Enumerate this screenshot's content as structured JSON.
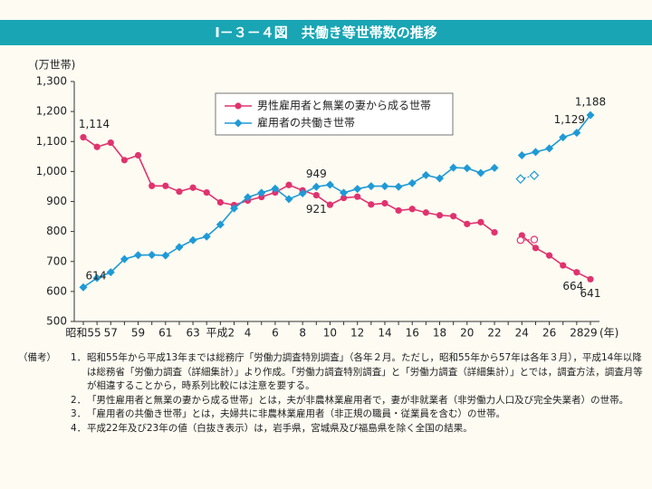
{
  "chart_data": {
    "type": "line",
    "title": "Ⅰ－３－４図　共働き等世帯数の推移",
    "y_label": "(万世帯)",
    "x_label": "(年)",
    "categories": [
      "昭和55",
      null,
      "57",
      null,
      "59",
      null,
      "61",
      null,
      "63",
      null,
      "平成2",
      null,
      "4",
      null,
      "6",
      null,
      "8",
      null,
      "10",
      null,
      "12",
      null,
      "14",
      null,
      "16",
      null,
      "18",
      null,
      "20",
      null,
      "22",
      null,
      "24",
      null,
      "26",
      null,
      "28",
      "29"
    ],
    "ylim": [
      500,
      1300
    ],
    "yticks": [
      500,
      600,
      700,
      800,
      900,
      {
        "value": 1000,
        "label": "1,000"
      },
      {
        "value": 1100,
        "label": "1,100"
      },
      {
        "value": 1200,
        "label": "1,200"
      },
      {
        "value": 1300,
        "label": "1,300"
      }
    ],
    "series": [
      {
        "name": "男性雇用者と無業の妻から成る世帯",
        "color": "#e0336e",
        "values": [
          1114,
          1082,
          1096,
          1038,
          1054,
          952,
          952,
          933,
          946,
          930,
          897,
          888,
          903,
          915,
          930,
          955,
          937,
          921,
          889,
          912,
          916,
          890,
          894,
          870,
          875,
          863,
          854,
          851,
          825,
          831,
          797,
          null,
          787,
          745,
          720,
          687,
          664,
          641
        ],
        "value_labels": [
          "1,114",
          null,
          null,
          null,
          null,
          null,
          null,
          null,
          null,
          null,
          null,
          null,
          null,
          null,
          null,
          null,
          null,
          "921",
          null,
          null,
          null,
          null,
          null,
          null,
          null,
          null,
          null,
          null,
          null,
          null,
          null,
          null,
          null,
          null,
          null,
          null,
          "664",
          "641"
        ],
        "hollow_values": [
          null,
          null,
          null,
          null,
          null,
          null,
          null,
          null,
          null,
          null,
          null,
          null,
          null,
          null,
          null,
          null,
          null,
          null,
          null,
          null,
          null,
          null,
          null,
          null,
          null,
          null,
          null,
          null,
          null,
          null,
          771,
          773,
          null,
          null,
          null,
          null,
          null,
          null
        ]
      },
      {
        "name": "雇用者の共働き世帯",
        "color": "#1f9ad6",
        "values": [
          614,
          645,
          664,
          708,
          721,
          722,
          720,
          748,
          771,
          783,
          823,
          877,
          914,
          929,
          943,
          908,
          927,
          949,
          956,
          929,
          942,
          951,
          951,
          949,
          961,
          988,
          977,
          1013,
          1011,
          995,
          1012,
          null,
          1054,
          1065,
          1077,
          1114,
          1129,
          1188
        ],
        "value_labels": [
          "614",
          null,
          null,
          null,
          null,
          null,
          null,
          null,
          null,
          null,
          null,
          null,
          null,
          null,
          null,
          null,
          null,
          "949",
          null,
          null,
          null,
          null,
          null,
          null,
          null,
          null,
          null,
          null,
          null,
          null,
          null,
          null,
          null,
          null,
          null,
          null,
          "1,129",
          "1,188"
        ],
        "hollow_values": [
          null,
          null,
          null,
          null,
          null,
          null,
          null,
          null,
          null,
          null,
          null,
          null,
          null,
          null,
          null,
          null,
          null,
          null,
          null,
          null,
          null,
          null,
          null,
          null,
          null,
          null,
          null,
          null,
          null,
          null,
          975,
          987,
          null,
          null,
          null,
          null,
          null,
          null
        ]
      }
    ]
  },
  "notes": {
    "heading": "（備考）",
    "items": [
      {
        "number": "1．",
        "text": "昭和55年から平成13年までは総務庁「労働力調査特別調査」（各年２月。ただし，昭和55年から57年は各年３月），平成14年以降は総務省「労働力調査（詳細集計）」より作成。「労働力調査特別調査」と「労働力調査（詳細集計）」とでは，調査方法，調査月等が相違することから，時系列比較には注意を要する。"
      },
      {
        "number": "2．",
        "text": "「男性雇用者と無業の妻から成る世帯」とは，夫が非農林業雇用者で，妻が非就業者（非労働力人口及び完全失業者）の世帯。"
      },
      {
        "number": "3．",
        "text": "「雇用者の共働き世帯」とは，夫婦共に非農林業雇用者（非正規の職員・従業員を含む）の世帯。"
      },
      {
        "number": "4．",
        "text": "平成22年及び23年の値（白抜き表示）は，岩手県，宮城県及び福島県を除く全国の結果。"
      }
    ]
  }
}
